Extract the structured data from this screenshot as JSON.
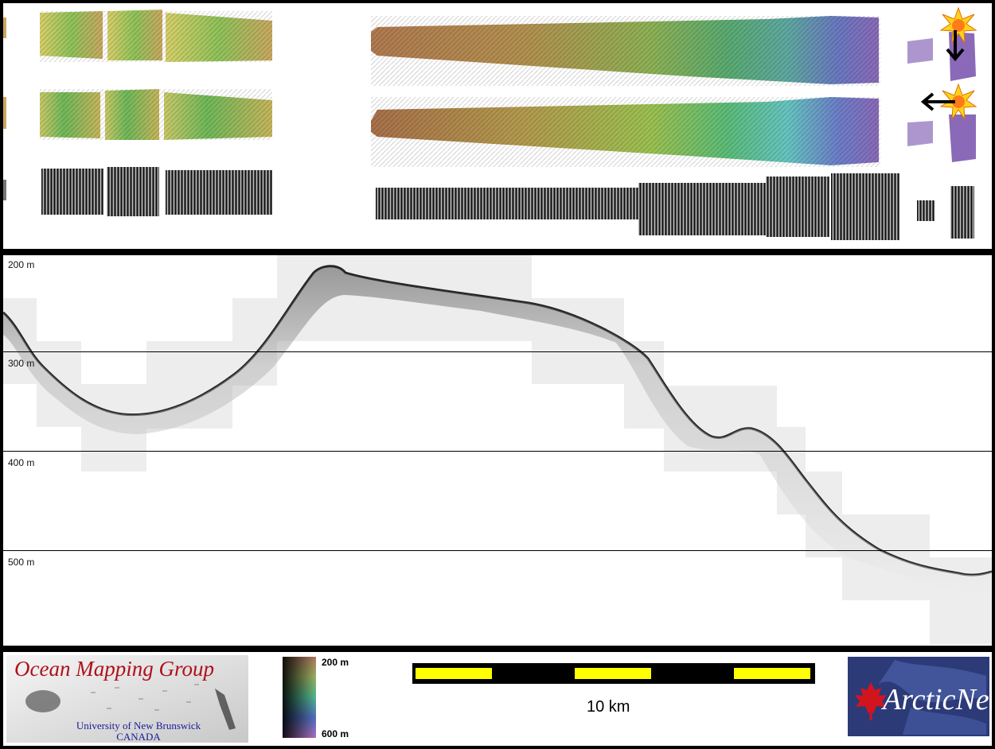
{
  "profile": {
    "depth_labels": [
      "200 m",
      "300 m",
      "400 m",
      "500 m"
    ]
  },
  "legend": {
    "colorbar_top": "200 m",
    "colorbar_bottom": "600 m",
    "scalebar_label": "10 km"
  },
  "logos": {
    "omg_title": "Ocean Mapping Group",
    "omg_line1": "University of New Brunswick",
    "omg_line2": "CANADA",
    "arctic_net": "ArcticNet"
  },
  "colors": {
    "scalebar_fill": "#ffff00",
    "omg_title": "#b0101a",
    "omg_sub": "#1a1a9a",
    "arctic_bg": "#2c3a78"
  },
  "icons": [
    "sun-icon",
    "arrow-down-icon",
    "arrow-left-icon",
    "maple-leaf-icon"
  ]
}
